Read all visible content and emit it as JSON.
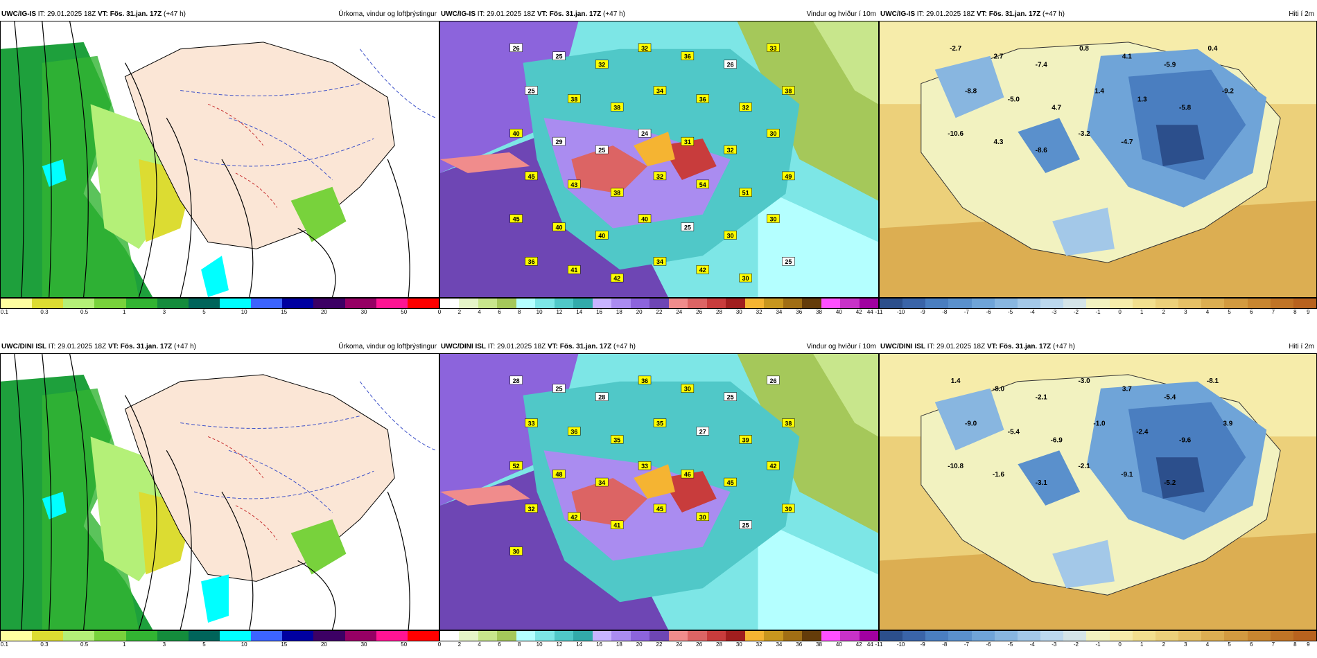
{
  "rows": [
    {
      "model": "UWC/IG-IS",
      "init_prefix": "IT: 29.01.2025 18Z",
      "valid": "VT: Fös. 31.jan. 17Z",
      "lead": "(+47 h)",
      "panels": {
        "precip": {
          "title": "Úrkoma, vindur og loftþrýstingur"
        },
        "wind": {
          "title": "Vindur og hviður í 10m",
          "labels": [
            "26",
            "25",
            "32",
            "32",
            "36",
            "26",
            "33",
            "25",
            "38",
            "38",
            "34",
            "36",
            "32",
            "38",
            "40",
            "29",
            "25",
            "24",
            "31",
            "32",
            "30",
            "45",
            "43",
            "38",
            "32",
            "54",
            "51",
            "49",
            "45",
            "40",
            "40",
            "40",
            "25",
            "30",
            "30",
            "36",
            "41",
            "42",
            "34",
            "42",
            "30",
            "25"
          ]
        },
        "temp": {
          "title": "Hiti í 2m",
          "labels": [
            "-2.7",
            "2.7",
            "-7.4",
            "0.8",
            "4.1",
            "-5.9",
            "0.4",
            "-8.8",
            "-5.0",
            "4.7",
            "1.4",
            "1.3",
            "-5.8",
            "-9.2",
            "-10.6",
            "4.3",
            "-8.6",
            "-3.2",
            "-4.7"
          ]
        }
      }
    },
    {
      "model": "UWC/DINI ISL",
      "init_prefix": "IT: 29.01.2025 18Z",
      "valid": "VT: Fös. 31.jan. 17Z",
      "lead": "(+47 h)",
      "panels": {
        "precip": {
          "title": "Úrkoma, vindur og loftþrýstingur"
        },
        "wind": {
          "title": "Vindur og hviður í 10m",
          "labels": [
            "28",
            "25",
            "28",
            "36",
            "30",
            "25",
            "26",
            "33",
            "36",
            "35",
            "35",
            "27",
            "39",
            "38",
            "52",
            "48",
            "34",
            "33",
            "46",
            "45",
            "42",
            "32",
            "42",
            "41",
            "45",
            "30",
            "25",
            "30",
            "30"
          ]
        },
        "temp": {
          "title": "Hiti í 2m",
          "labels": [
            "1.4",
            "-8.0",
            "-2.1",
            "-3.0",
            "3.7",
            "-5.4",
            "-8.1",
            "-9.0",
            "-5.4",
            "-6.9",
            "-1.0",
            "-2.4",
            "-9.6",
            "3.9",
            "-10.8",
            "-1.6",
            "-3.1",
            "-2.1",
            "-9.1",
            "-5.2"
          ]
        }
      }
    }
  ],
  "colorbars": {
    "precip": {
      "colors": [
        "#ffffa0",
        "#dcdc32",
        "#b4f078",
        "#78d23c",
        "#32b432",
        "#148c3c",
        "#00645a",
        "#00ffff",
        "#3c64ff",
        "#0000a0",
        "#3c0064",
        "#960064",
        "#ff1493",
        "#ff0000"
      ],
      "ticks": [
        "0.1",
        "0.3",
        "0.5",
        "1",
        "3",
        "5",
        "10",
        "15",
        "20",
        "30",
        "50"
      ]
    },
    "wind": {
      "colors": [
        "#ffffff",
        "#e6f5c8",
        "#c8e68c",
        "#a5c85a",
        "#b4ffff",
        "#7de6e6",
        "#50c8c8",
        "#32aaaa",
        "#c8b4ff",
        "#aa8cf0",
        "#8c64dc",
        "#6e46b4",
        "#f08c8c",
        "#dc6464",
        "#c83c3c",
        "#a01e1e",
        "#f5b432",
        "#c8961e",
        "#a06e14",
        "#643c0a",
        "#ff50ff",
        "#c832c8",
        "#a000a0"
      ],
      "ticks": [
        "0",
        "2",
        "4",
        "6",
        "8",
        "10",
        "12",
        "14",
        "16",
        "18",
        "20",
        "22",
        "24",
        "26",
        "28",
        "30",
        "32",
        "34",
        "36",
        "38",
        "40",
        "42",
        "44"
      ]
    },
    "temp": {
      "colors": [
        "#2c4f8c",
        "#3a64a8",
        "#4a7ec0",
        "#5a90cc",
        "#6fa4d8",
        "#88b6e0",
        "#a3c8e8",
        "#bcd8ee",
        "#d4e4e8",
        "#f2f2c0",
        "#f6ecaa",
        "#f2df8e",
        "#ecd07a",
        "#e6c066",
        "#dcae52",
        "#d29a40",
        "#c88630",
        "#c07426",
        "#b8621e"
      ],
      "ticks": [
        "-11",
        "-10",
        "-9",
        "-8",
        "-7",
        "-6",
        "-5",
        "-4",
        "-3",
        "-2",
        "-1",
        "0",
        "1",
        "2",
        "3",
        "4",
        "5",
        "6",
        "7",
        "8",
        "9"
      ]
    }
  }
}
